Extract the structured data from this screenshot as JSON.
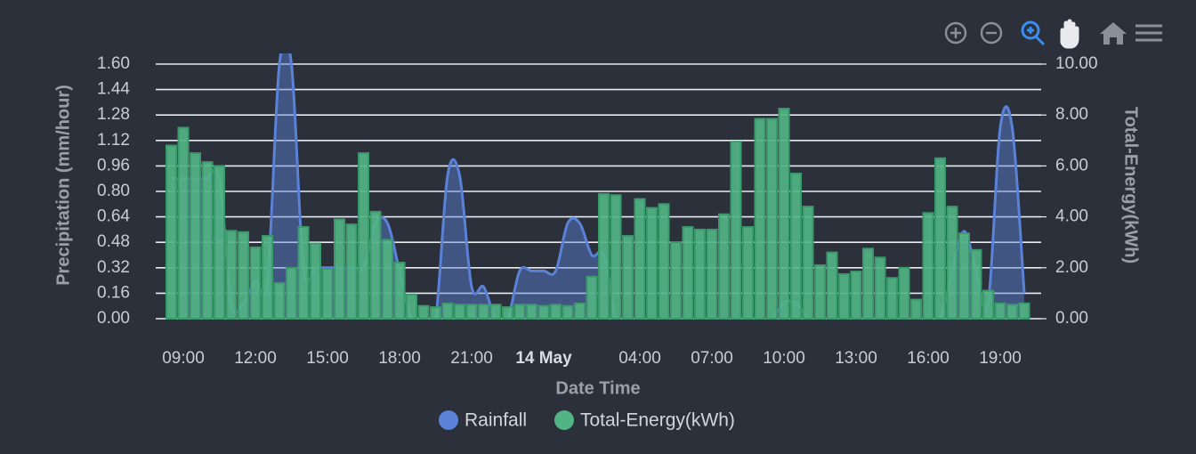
{
  "chart_data": {
    "type": "combo",
    "xlabel": "Date Time",
    "ylabel": "Precipitation (mm/hour)",
    "y2label": "Total-Energy(kWh)",
    "categories": [
      null,
      "09:00",
      null,
      null,
      null,
      null,
      null,
      "12:00",
      null,
      null,
      null,
      null,
      null,
      "15:00",
      null,
      null,
      null,
      null,
      null,
      "18:00",
      null,
      null,
      null,
      null,
      null,
      "21:00",
      null,
      null,
      null,
      null,
      null,
      "14 May",
      null,
      null,
      null,
      null,
      null,
      null,
      null,
      "04:00",
      null,
      null,
      null,
      null,
      null,
      "07:00",
      null,
      null,
      null,
      null,
      null,
      "10:00",
      null,
      null,
      null,
      null,
      null,
      "13:00",
      null,
      null,
      null,
      null,
      null,
      "16:00",
      null,
      null,
      null,
      null,
      null,
      "19:00",
      null,
      null
    ],
    "series": [
      {
        "name": "Rainfall",
        "type": "area",
        "axis": "y",
        "color": "#5a82d8",
        "values": [
          0.88,
          0.88,
          0.88,
          0.88,
          0.88,
          0.1,
          0.1,
          0.24,
          0.24,
          1.6,
          1.6,
          0.32,
          0.32,
          0.32,
          0.32,
          0.32,
          0.32,
          0.6,
          0.6,
          0.3,
          0,
          0,
          0,
          0.9,
          0.9,
          0.2,
          0.2,
          0,
          0,
          0.3,
          0.3,
          0.3,
          0.3,
          0.6,
          0.6,
          0.4,
          0.4,
          0,
          0,
          0,
          0,
          0,
          0,
          0,
          0,
          0,
          0,
          0,
          0,
          0,
          0,
          0.1,
          0.1,
          0,
          0,
          0,
          0,
          0,
          0,
          0,
          0,
          0,
          0,
          0,
          0,
          0.3,
          0.55,
          0.3,
          0.1,
          1.2,
          1.2,
          0.16
        ]
      },
      {
        "name": "Total-Energy(kWh)",
        "type": "bar",
        "axis": "y2",
        "color": "#52b485",
        "values": [
          6.8,
          7.5,
          6.5,
          6.15,
          6.0,
          3.45,
          3.4,
          2.8,
          3.25,
          1.4,
          2.0,
          3.6,
          2.95,
          1.95,
          3.9,
          3.7,
          6.5,
          4.2,
          3.1,
          2.2,
          0.95,
          0.5,
          0.45,
          0.6,
          0.55,
          0.55,
          0.55,
          0.55,
          0.45,
          0.55,
          0.55,
          0.5,
          0.55,
          0.5,
          0.6,
          1.65,
          4.9,
          4.85,
          3.25,
          4.7,
          4.35,
          4.5,
          3.0,
          3.6,
          3.5,
          3.5,
          4.1,
          6.95,
          3.6,
          7.85,
          7.85,
          8.25,
          5.7,
          4.4,
          2.1,
          2.6,
          1.75,
          1.85,
          2.75,
          2.4,
          1.6,
          2.0,
          0.75,
          4.15,
          6.3,
          4.4,
          3.35,
          2.7,
          1.1,
          0.6,
          0.55,
          0.6
        ]
      }
    ],
    "ylim": [
      0,
      1.6
    ],
    "yticks": [
      {
        "value": 0,
        "label": "0.00"
      },
      {
        "value": 0.16,
        "label": "0.16"
      },
      {
        "value": 0.32,
        "label": "0.32"
      },
      {
        "value": 0.48,
        "label": "0.48"
      },
      {
        "value": 0.64,
        "label": "0.64"
      },
      {
        "value": 0.8,
        "label": "0.80"
      },
      {
        "value": 0.96,
        "label": "0.96"
      },
      {
        "value": 1.12,
        "label": "1.12"
      },
      {
        "value": 1.28,
        "label": "1.28"
      },
      {
        "value": 1.44,
        "label": "1.44"
      },
      {
        "value": 1.6,
        "label": "1.60"
      }
    ],
    "y2lim": [
      0,
      10
    ],
    "y2ticks": [
      {
        "value": 0,
        "label": "0.00"
      },
      {
        "value": 2,
        "label": "2.00"
      },
      {
        "value": 4,
        "label": "4.00"
      },
      {
        "value": 6,
        "label": "6.00"
      },
      {
        "value": 8,
        "label": "8.00"
      },
      {
        "value": 10,
        "label": "10.00"
      }
    ],
    "grid": true,
    "legend": "bottom"
  }
}
